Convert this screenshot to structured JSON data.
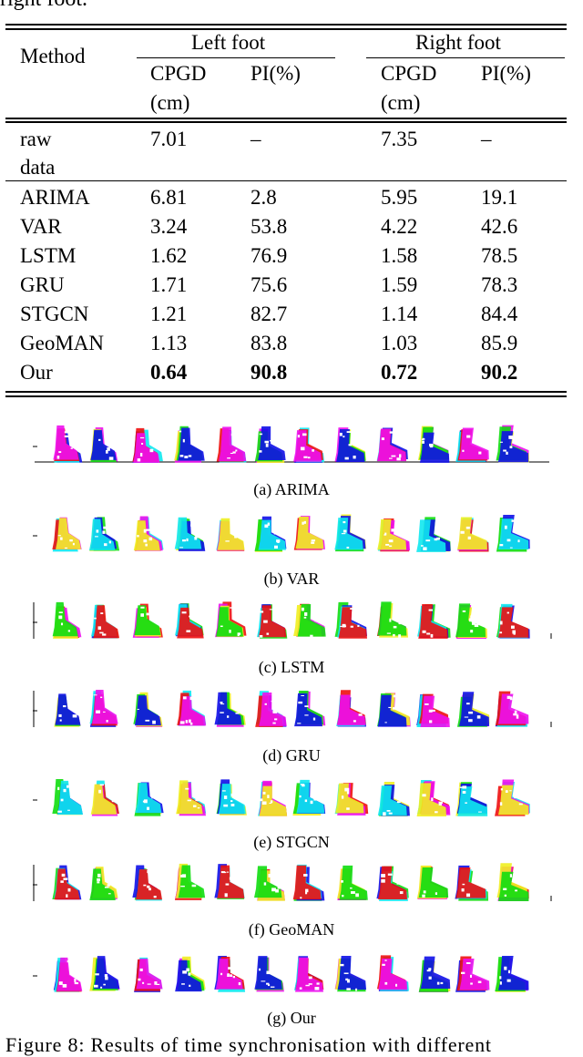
{
  "table": {
    "caption_top": "right foot.",
    "header": {
      "method": "Method",
      "left_foot": "Left foot",
      "right_foot": "Right foot",
      "cpgd": "CPGD",
      "cm": "(cm)",
      "pi": "PI(%)"
    },
    "raw": {
      "method_line1": "raw",
      "method_line2": "data",
      "l_cpgd": "7.01",
      "l_pi": "–",
      "r_cpgd": "7.35",
      "r_pi": "–"
    },
    "rows": [
      {
        "method": "ARIMA",
        "l_cpgd": "6.81",
        "l_pi": "2.8",
        "r_cpgd": "5.95",
        "r_pi": "19.1"
      },
      {
        "method": "VAR",
        "l_cpgd": "3.24",
        "l_pi": "53.8",
        "r_cpgd": "4.22",
        "r_pi": "42.6"
      },
      {
        "method": "LSTM",
        "l_cpgd": "1.62",
        "l_pi": "76.9",
        "r_cpgd": "1.58",
        "r_pi": "78.5"
      },
      {
        "method": "GRU",
        "l_cpgd": "1.71",
        "l_pi": "75.6",
        "r_cpgd": "1.59",
        "r_pi": "78.3"
      },
      {
        "method": "STGCN",
        "l_cpgd": "1.21",
        "l_pi": "82.7",
        "r_cpgd": "1.14",
        "r_pi": "84.4"
      },
      {
        "method": "GeoMAN",
        "l_cpgd": "1.13",
        "l_pi": "83.8",
        "r_cpgd": "1.03",
        "r_pi": "85.9"
      },
      {
        "method": "Our",
        "l_cpgd": "0.64",
        "l_pi": "90.8",
        "r_cpgd": "0.72",
        "r_pi": "90.2"
      }
    ]
  },
  "figure": {
    "subfigures": [
      {
        "caption": "(a) ARIMA"
      },
      {
        "caption": "(b) VAR"
      },
      {
        "caption": "(c) LSTM"
      },
      {
        "caption": "(d) GRU"
      },
      {
        "caption": "(e) STGCN"
      },
      {
        "caption": "(f) GeoMAN"
      },
      {
        "caption": "(g) Our"
      }
    ],
    "caption": "Figure 8: Results of time synchronisation with different"
  },
  "colors": {
    "blue": "#1010e8",
    "cyan": "#10e8f0",
    "red": "#ee1010",
    "magenta": "#ee10ee",
    "yellow": "#f0f020",
    "green": "#10dd10",
    "white": "#ffffff"
  }
}
